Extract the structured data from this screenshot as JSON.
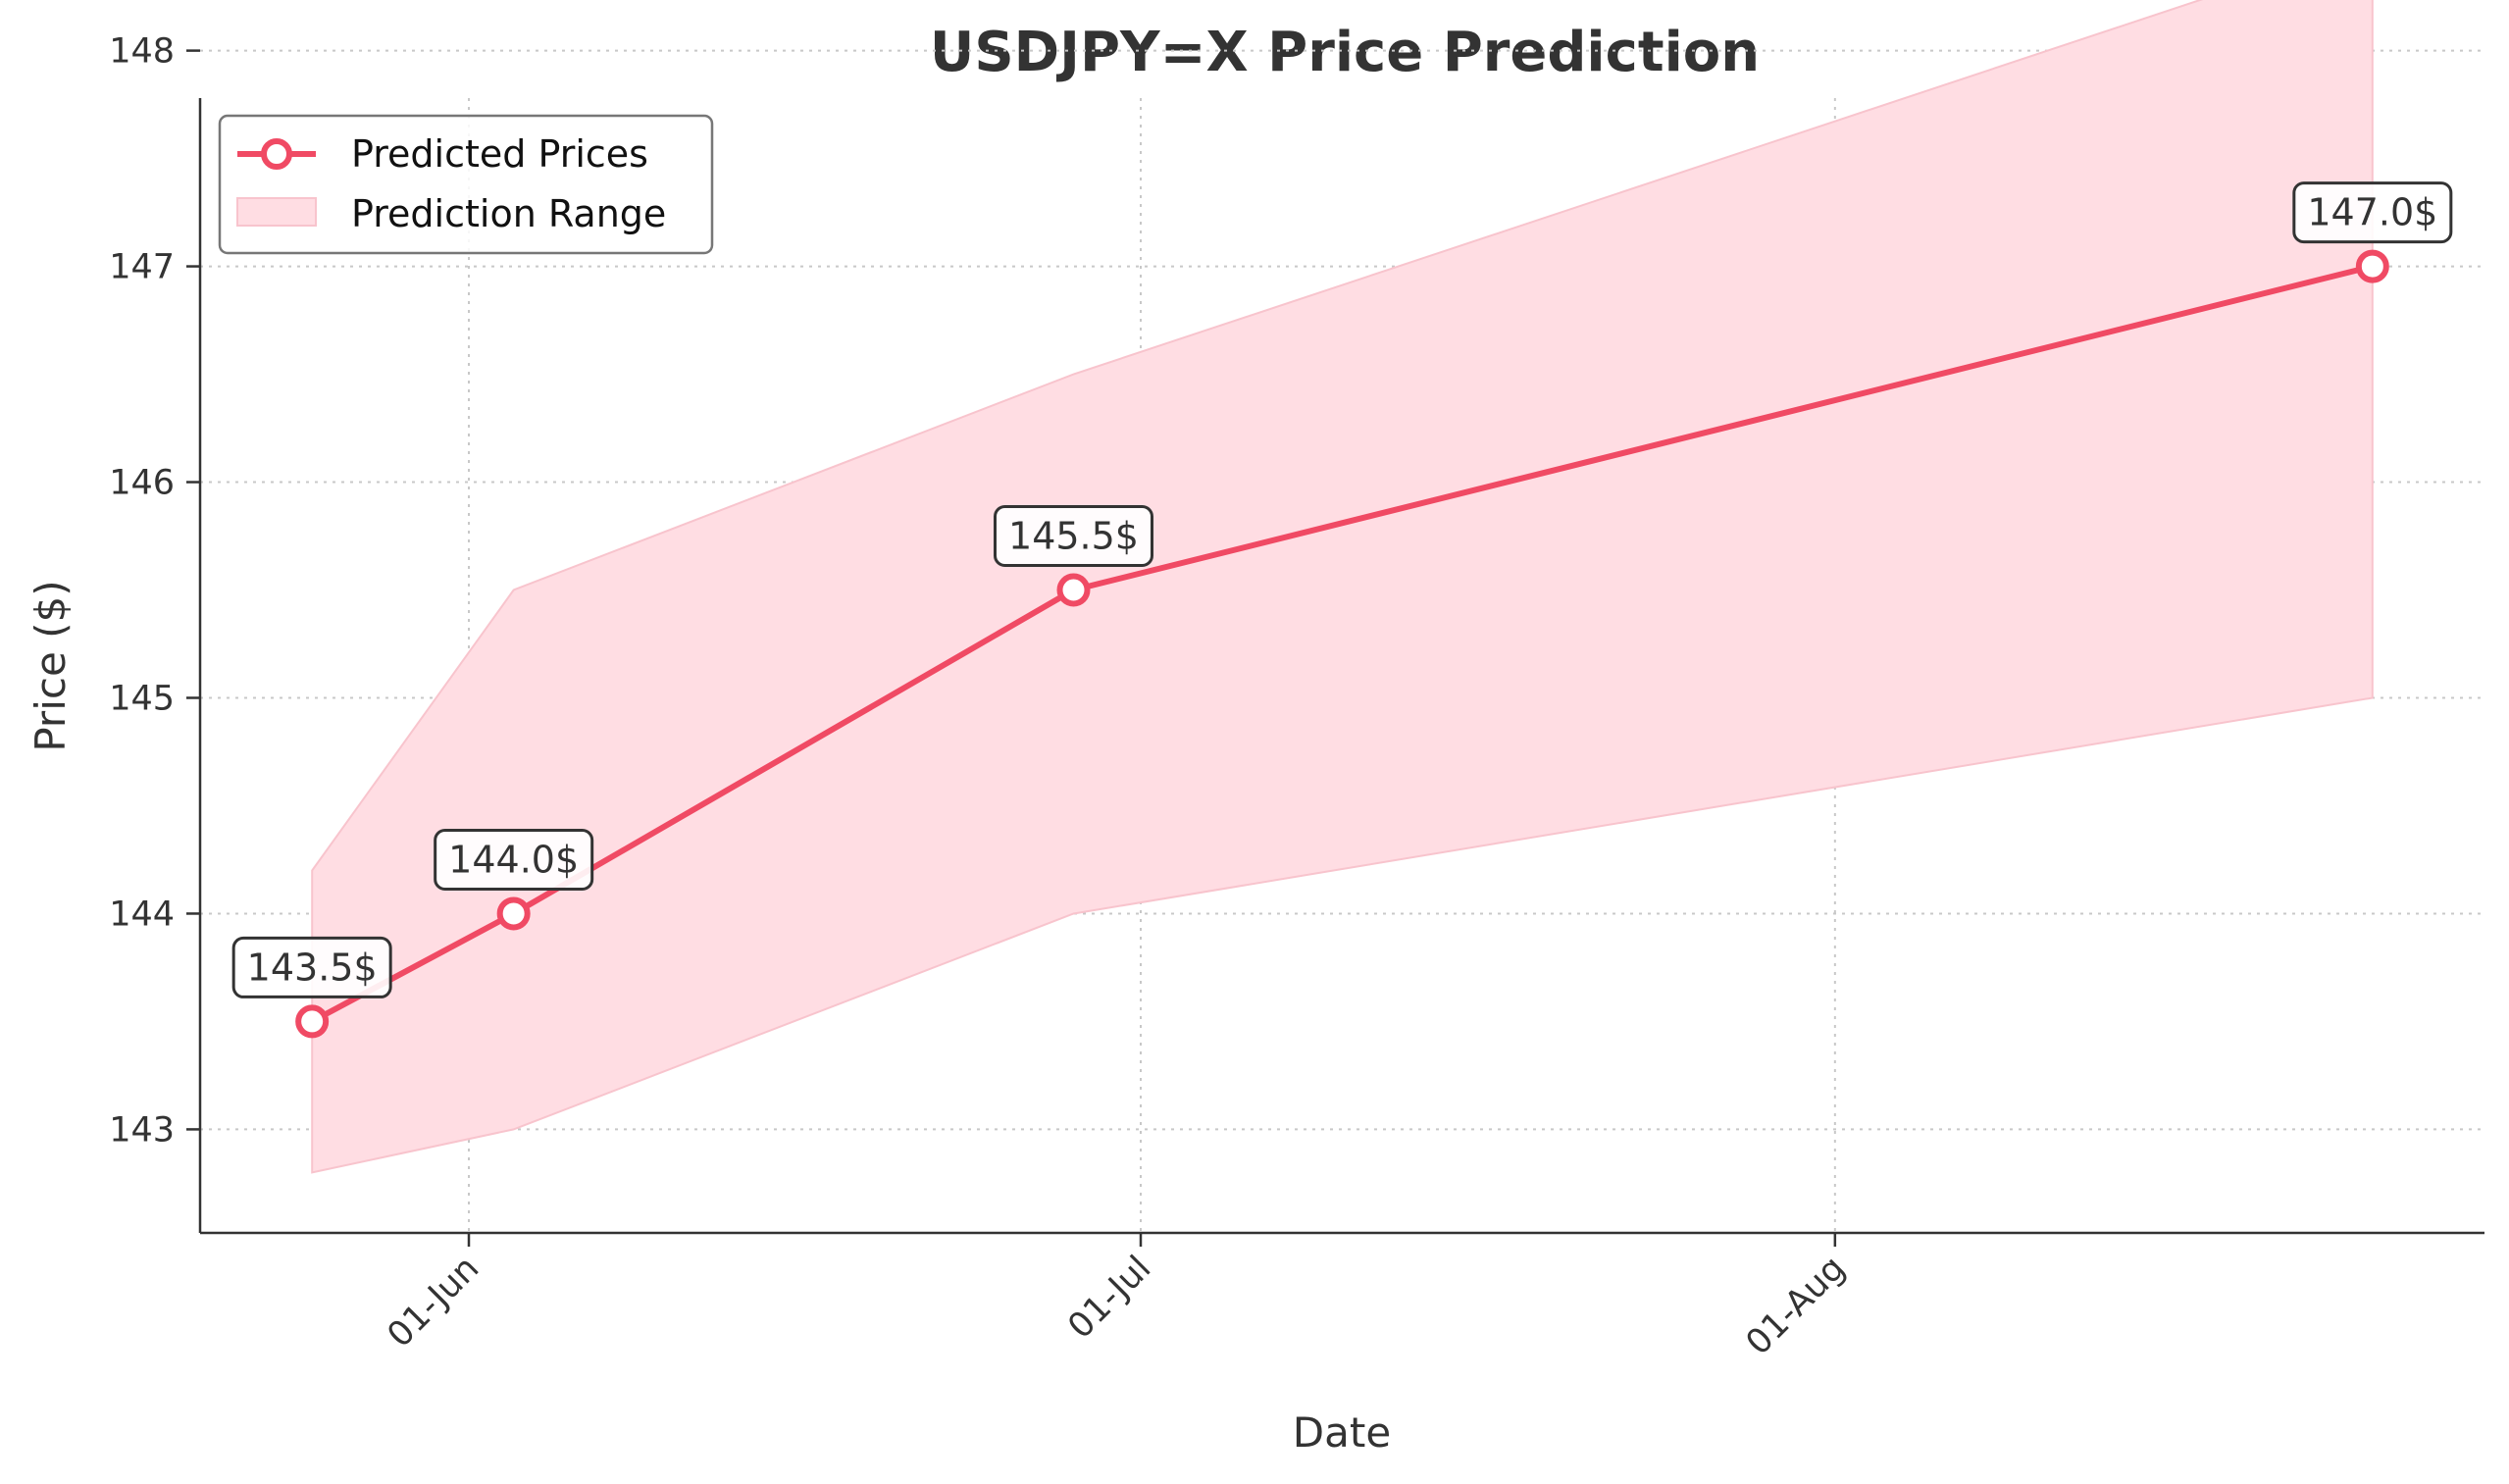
{
  "chart_data": {
    "type": "line",
    "title": "USDJPY=X Price Prediction",
    "xlabel": "Date",
    "ylabel": "Price ($)",
    "x": [
      "2024-05-25",
      "2024-06-03",
      "2024-06-28",
      "2024-08-25"
    ],
    "series": [
      {
        "name": "Predicted Prices",
        "values": [
          143.5,
          144.0,
          145.5,
          147.0
        ],
        "color": "#f04a64"
      }
    ],
    "range": {
      "name": "Prediction Range",
      "lower": [
        142.8,
        143.0,
        144.0,
        145.0
      ],
      "upper": [
        144.2,
        145.5,
        146.5,
        148.5
      ],
      "color": "#ffdde3"
    },
    "annotations": [
      "143.5$",
      "144.0$",
      "145.5$",
      "147.0$"
    ],
    "xticks": [
      {
        "date": "2024-06-01",
        "label": "01-Jun"
      },
      {
        "date": "2024-07-01",
        "label": "01-Jul"
      },
      {
        "date": "2024-08-01",
        "label": "01-Aug"
      }
    ],
    "yticks": [
      143,
      144,
      145,
      146,
      147,
      148
    ],
    "ylim": [
      142.52,
      147.78
    ],
    "xlim": [
      "2024-05-20",
      "2024-08-30"
    ],
    "grid": true,
    "legend": "top-left"
  }
}
